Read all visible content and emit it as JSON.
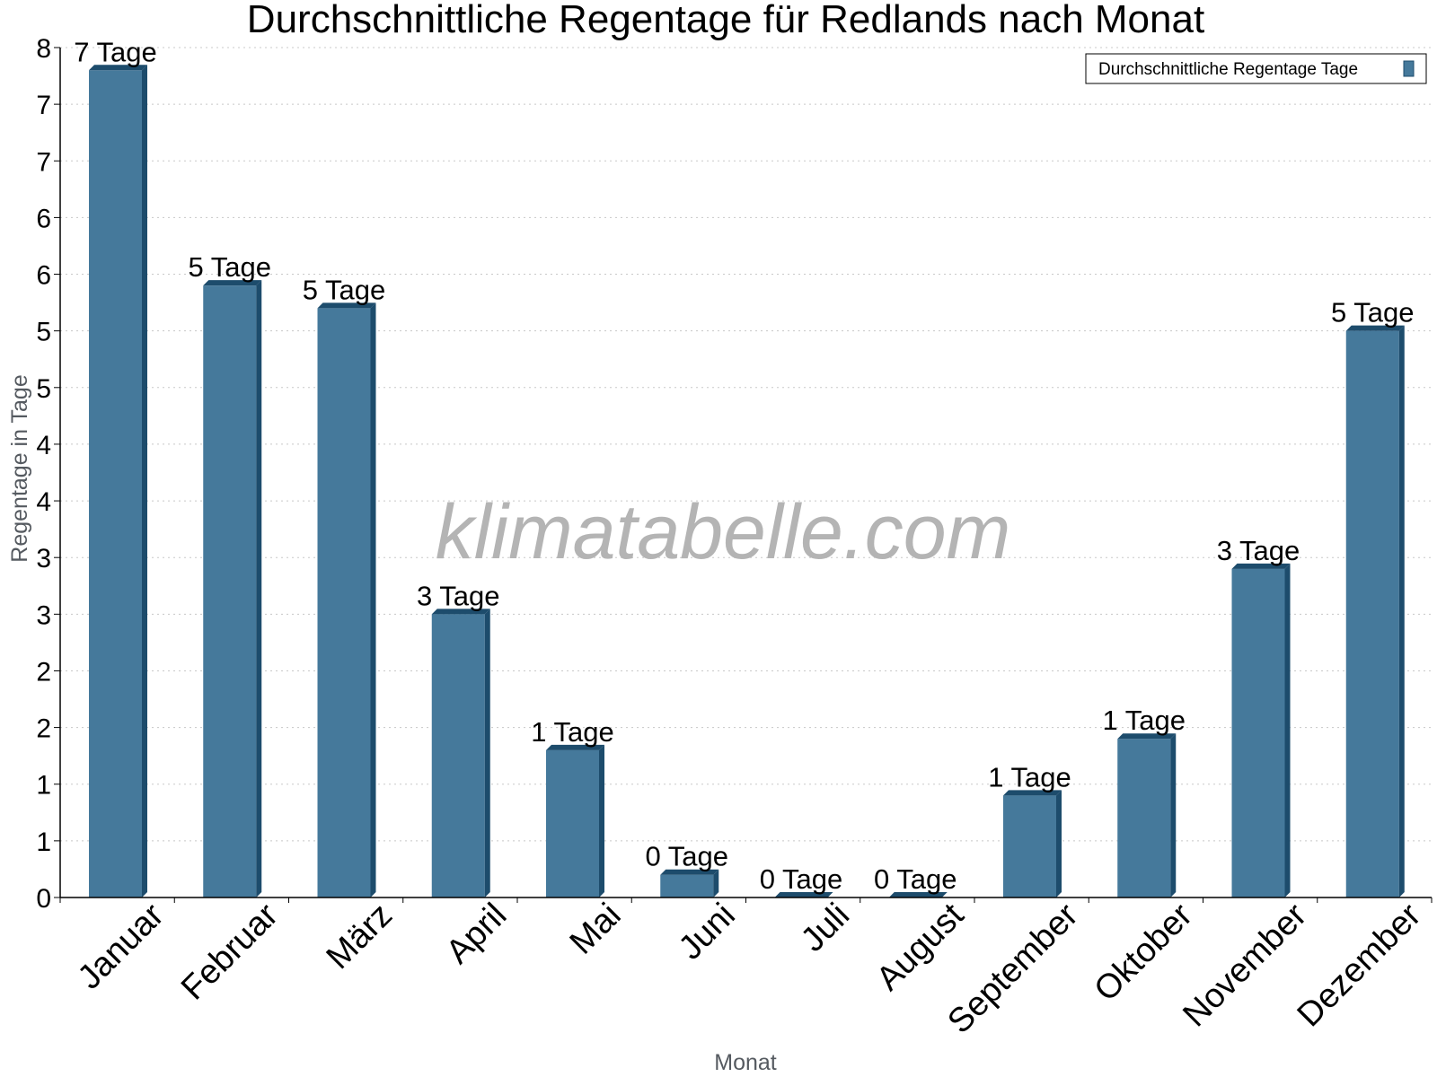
{
  "chart_data": {
    "type": "bar",
    "title": "Durchschnittliche Regentage für Redlands nach Monat",
    "xlabel": "Monat",
    "ylabel": "Regentage in Tage",
    "categories": [
      "Januar",
      "Februar",
      "März",
      "April",
      "Mai",
      "Juni",
      "Juli",
      "August",
      "September",
      "Oktober",
      "November",
      "Dezember"
    ],
    "series": [
      {
        "name": "Durchschnittliche Regentage Tage",
        "values": [
          7.3,
          5.4,
          5.2,
          2.5,
          1.3,
          0.2,
          0.0,
          0.0,
          0.9,
          1.4,
          2.9,
          5.0
        ],
        "labels": [
          "7 Tage",
          "5 Tage",
          "5 Tage",
          "3 Tage",
          "1 Tage",
          "0 Tage",
          "0 Tage",
          "0 Tage",
          "1 Tage",
          "1 Tage",
          "3 Tage",
          "5 Tage"
        ]
      }
    ],
    "ylim": [
      0,
      7.5
    ],
    "yticks": [
      0,
      0.5,
      1,
      1.5,
      2,
      2.5,
      3,
      3.5,
      4,
      4.5,
      5,
      5.5,
      6,
      6.5,
      7,
      7.5
    ],
    "ytick_labels": [
      "0",
      "1",
      "1",
      "2",
      "2",
      "3",
      "3",
      "4",
      "4",
      "5",
      "5",
      "6",
      "6",
      "7",
      "7",
      "8"
    ],
    "grid": true,
    "legend_position": "top-right",
    "bar_color": "#45799b",
    "bar_side_color": "#1d4c6c",
    "watermark": "klimatabelle.com"
  }
}
